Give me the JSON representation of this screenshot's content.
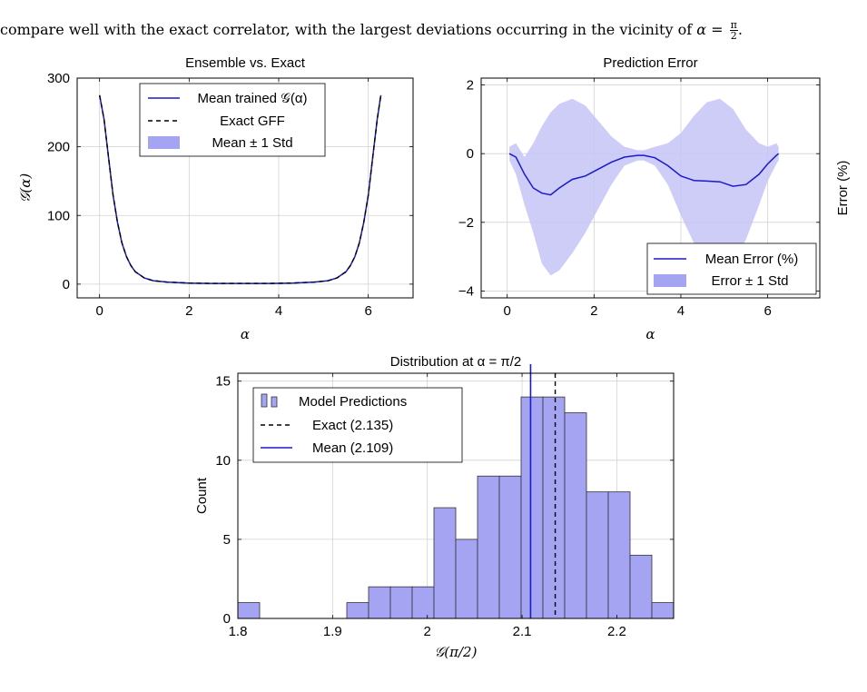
{
  "intro": {
    "text": "compare well with the exact correlator, with the largest deviations occurring in the vicinity of",
    "alpha": "α",
    "equals": "=",
    "frac_num": "π",
    "frac_den": "2",
    "period": "."
  },
  "chart_data": [
    {
      "type": "line",
      "title": "Ensemble vs. Exact",
      "xlabel": "α",
      "ylabel": "𝒢(α)",
      "xlim": [
        -0.5,
        7.0
      ],
      "ylim": [
        -20,
        300
      ],
      "xticks": [
        0,
        2,
        4,
        6
      ],
      "yticks": [
        0,
        100,
        200,
        300
      ],
      "grid": true,
      "legend_position": "top-center",
      "legend": [
        "Mean trained 𝒢(α)",
        "Exact GFF",
        "Mean ± 1 Std"
      ],
      "series": [
        {
          "name": "Mean trained 𝒢(α)",
          "style": "solid",
          "color": "#1a1acc",
          "x": [
            0,
            0.1,
            0.2,
            0.3,
            0.4,
            0.5,
            0.6,
            0.7,
            0.8,
            1.0,
            1.2,
            1.5,
            2.0,
            2.5,
            3.14,
            3.8,
            4.3,
            4.8,
            5.1,
            5.3,
            5.5,
            5.6,
            5.7,
            5.8,
            5.9,
            6.0,
            6.1,
            6.2,
            6.28
          ],
          "y": [
            275,
            240,
            185,
            130,
            90,
            60,
            40,
            27,
            18,
            9,
            5,
            3,
            1.5,
            1.0,
            1.0,
            1.0,
            1.5,
            3,
            5,
            9,
            18,
            27,
            40,
            60,
            90,
            130,
            185,
            240,
            275
          ]
        },
        {
          "name": "Exact GFF",
          "style": "dashed",
          "color": "#000000",
          "x": [
            0,
            0.1,
            0.2,
            0.3,
            0.4,
            0.5,
            0.6,
            0.7,
            0.8,
            1.0,
            1.2,
            1.5,
            2.0,
            2.5,
            3.14,
            3.8,
            4.3,
            4.8,
            5.1,
            5.3,
            5.5,
            5.6,
            5.7,
            5.8,
            5.9,
            6.0,
            6.1,
            6.2,
            6.28
          ],
          "y": [
            275,
            240,
            185,
            130,
            90,
            60,
            40,
            27,
            18,
            9,
            5,
            3,
            1.5,
            1.0,
            1.0,
            1.0,
            1.5,
            3,
            5,
            9,
            18,
            27,
            40,
            60,
            90,
            130,
            185,
            240,
            275
          ]
        }
      ]
    },
    {
      "type": "line",
      "title": "Prediction Error",
      "xlabel": "α",
      "ylabel": "Error (%)",
      "xlim": [
        -0.6,
        7.2
      ],
      "ylim": [
        -4.2,
        2.2
      ],
      "xticks": [
        0,
        2,
        4,
        6
      ],
      "yticks": [
        -4,
        -2,
        0,
        2
      ],
      "grid": true,
      "legend_position": "bottom-right",
      "legend": [
        "Mean Error (%)",
        "Error ± 1 Std"
      ],
      "series": [
        {
          "name": "Mean Error (%)",
          "style": "solid",
          "color": "#1a1acc",
          "x": [
            0.05,
            0.2,
            0.4,
            0.6,
            0.8,
            1.0,
            1.2,
            1.5,
            1.8,
            2.1,
            2.4,
            2.7,
            3.0,
            3.15,
            3.4,
            3.7,
            4.0,
            4.3,
            4.6,
            4.9,
            5.2,
            5.5,
            5.8,
            6.0,
            6.2,
            6.25
          ],
          "y": [
            0.0,
            -0.1,
            -0.6,
            -1.0,
            -1.15,
            -1.2,
            -1.0,
            -0.75,
            -0.65,
            -0.45,
            -0.25,
            -0.1,
            -0.05,
            -0.05,
            -0.12,
            -0.35,
            -0.65,
            -0.78,
            -0.8,
            -0.82,
            -0.95,
            -0.9,
            -0.6,
            -0.3,
            -0.05,
            0.0
          ]
        },
        {
          "name": "Error ± 1 Std",
          "style": "band",
          "color": "#c4c4f7",
          "x": [
            0.05,
            0.2,
            0.4,
            0.6,
            0.8,
            1.0,
            1.2,
            1.5,
            1.8,
            2.1,
            2.4,
            2.7,
            3.0,
            3.15,
            3.4,
            3.7,
            4.0,
            4.3,
            4.6,
            4.9,
            5.2,
            5.5,
            5.8,
            6.0,
            6.2,
            6.25
          ],
          "upper": [
            0.2,
            0.3,
            -0.1,
            0.3,
            0.8,
            1.2,
            1.45,
            1.6,
            1.4,
            0.95,
            0.5,
            0.2,
            0.1,
            0.1,
            0.2,
            0.3,
            0.6,
            1.1,
            1.5,
            1.6,
            1.3,
            0.7,
            0.3,
            0.2,
            0.3,
            0.2
          ],
          "lower": [
            -0.2,
            -0.6,
            -1.5,
            -2.3,
            -3.2,
            -3.55,
            -3.4,
            -2.9,
            -2.3,
            -1.6,
            -0.9,
            -0.35,
            -0.2,
            -0.2,
            -0.35,
            -0.9,
            -1.8,
            -2.6,
            -3.2,
            -3.5,
            -3.2,
            -2.5,
            -1.5,
            -0.8,
            -0.3,
            -0.2
          ]
        }
      ]
    },
    {
      "type": "bar",
      "title": "Distribution at α = π/2",
      "xlabel": "𝒢(π/2)",
      "ylabel": "Count",
      "xlim": [
        1.8,
        2.26
      ],
      "ylim": [
        0,
        15.5
      ],
      "xticks": [
        1.8,
        1.9,
        2.0,
        2.1,
        2.2
      ],
      "xtick_labels": [
        "1.8",
        "1.9",
        "2",
        "2.1",
        "2.2"
      ],
      "yticks": [
        0,
        5,
        10,
        15
      ],
      "grid": true,
      "legend_position": "top-left",
      "legend": [
        "Model Predictions",
        "Exact (2.135)",
        "Mean (2.109)"
      ],
      "bin_width": 0.023,
      "bin_starts": [
        1.8,
        1.823,
        1.846,
        1.869,
        1.892,
        1.915,
        1.938,
        1.961,
        1.984,
        2.007,
        2.03,
        2.053,
        2.076,
        2.099,
        2.122,
        2.145,
        2.168,
        2.191,
        2.214,
        2.237
      ],
      "counts": [
        1,
        0,
        0,
        0,
        0,
        1,
        2,
        2,
        2,
        7,
        5,
        9,
        9,
        14,
        14,
        13,
        8,
        8,
        4,
        1
      ],
      "exact": 2.135,
      "mean": 2.109
    }
  ],
  "colors": {
    "blue_line": "#1a1acc",
    "band": "#c4c4f7",
    "bar_fill": "#a4a4f2",
    "grid": "#d2d2d2"
  }
}
